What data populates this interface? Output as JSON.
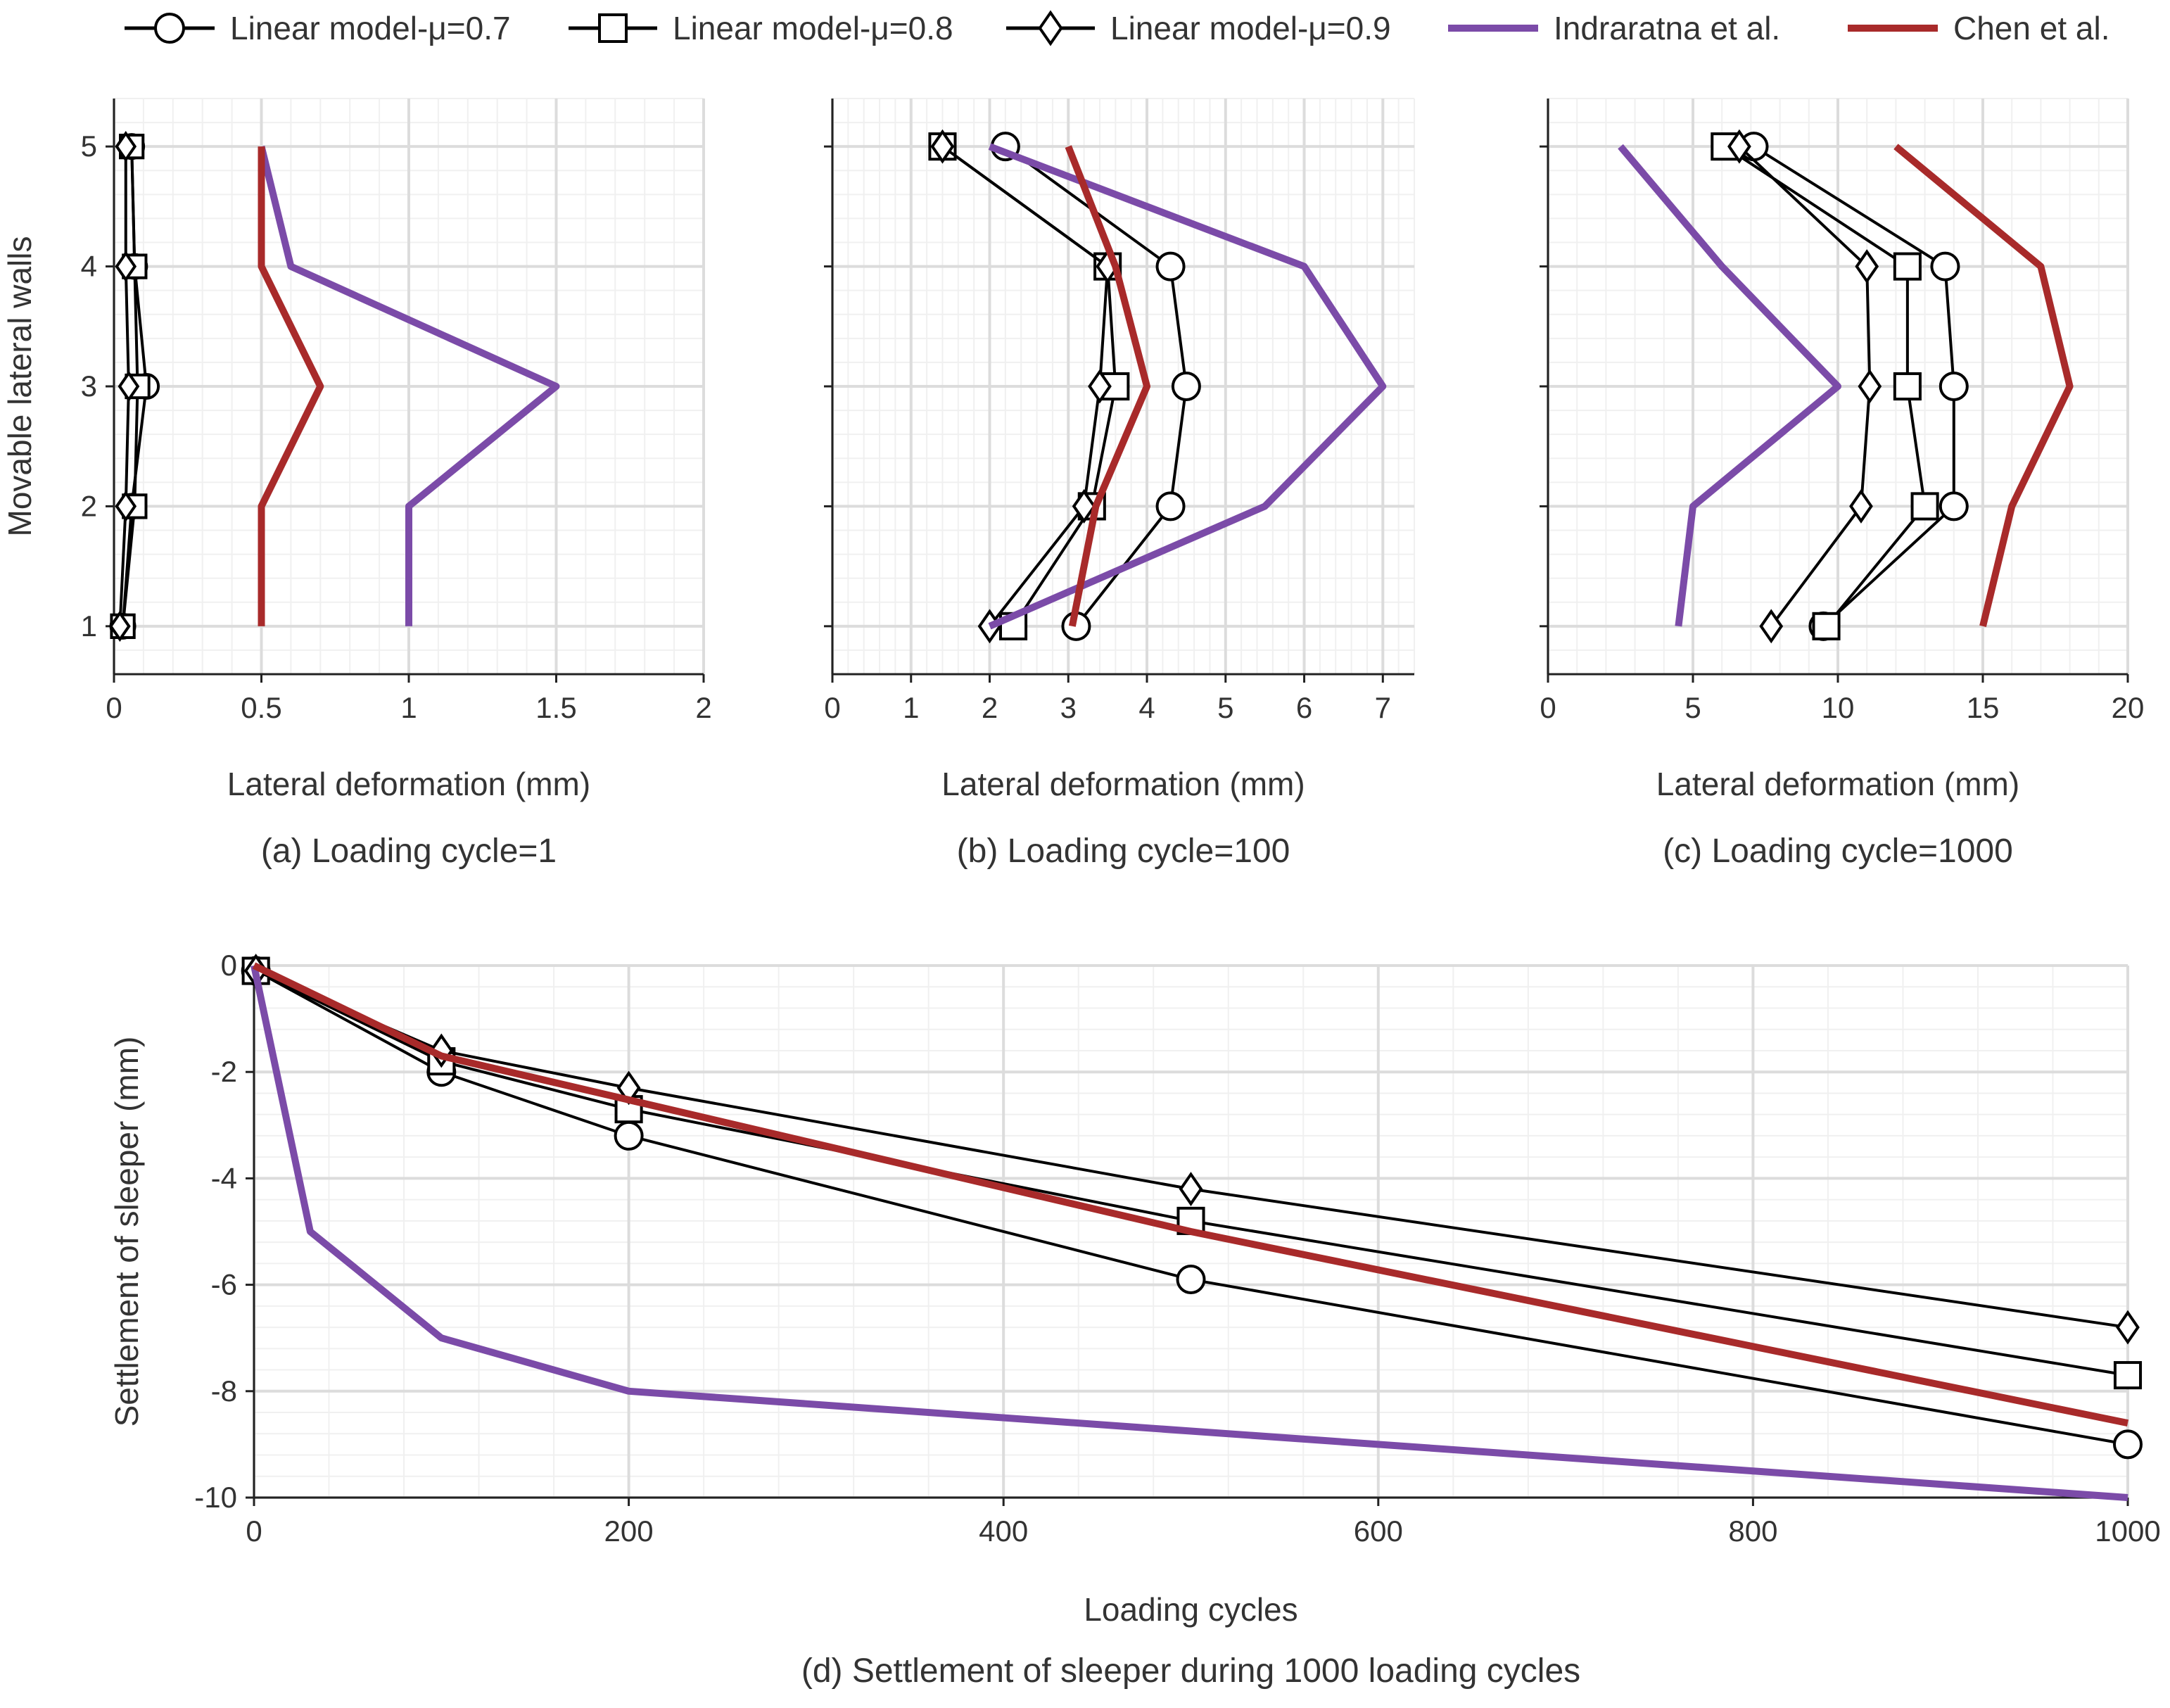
{
  "chart_data": [
    {
      "type": "line",
      "panel": "a",
      "caption": "(a) Loading cycle=1",
      "xlabel": "Lateral deformation (mm)",
      "ylabel": "Movable lateral walls",
      "xlim": [
        0,
        2
      ],
      "ylim": [
        0.6,
        5.4
      ],
      "xticks": [
        0,
        0.5,
        1,
        1.5,
        2
      ],
      "xtick_labels": [
        "0",
        "0.5",
        "1",
        "1.5",
        "2"
      ],
      "yticks": [
        1,
        2,
        3,
        4,
        5
      ],
      "ytick_labels": [
        "1",
        "2",
        "3",
        "4",
        "5"
      ],
      "grid": true,
      "series": [
        {
          "name": "Linear model-μ=0.7",
          "marker": "circle",
          "x": [
            0.03,
            0.06,
            0.11,
            0.07,
            0.06
          ],
          "y": [
            1,
            2,
            3,
            4,
            5
          ]
        },
        {
          "name": "Linear model-μ=0.8",
          "marker": "square",
          "x": [
            0.03,
            0.07,
            0.08,
            0.07,
            0.06
          ],
          "y": [
            1,
            2,
            3,
            4,
            5
          ]
        },
        {
          "name": "Linear model-μ=0.9",
          "marker": "diamond",
          "x": [
            0.02,
            0.04,
            0.05,
            0.04,
            0.04
          ],
          "y": [
            1,
            2,
            3,
            4,
            5
          ]
        },
        {
          "name": "Indraratna et al.",
          "marker": "none",
          "x": [
            1.0,
            1.0,
            1.5,
            0.6,
            0.5
          ],
          "y": [
            1,
            2,
            3,
            4,
            5
          ]
        },
        {
          "name": "Chen et al.",
          "marker": "none",
          "x": [
            0.5,
            0.5,
            0.7,
            0.5,
            0.5
          ],
          "y": [
            1,
            2,
            3,
            4,
            5
          ]
        }
      ]
    },
    {
      "type": "line",
      "panel": "b",
      "caption": "(b) Loading cycle=100",
      "xlabel": "Lateral deformation (mm)",
      "ylabel": "",
      "xlim": [
        0,
        7.4
      ],
      "ylim": [
        0.6,
        5.4
      ],
      "xticks": [
        0,
        1,
        2,
        3,
        4,
        5,
        6,
        7
      ],
      "xtick_labels": [
        "0",
        "1",
        "2",
        "3",
        "4",
        "5",
        "6",
        "7"
      ],
      "yticks": [
        1,
        2,
        3,
        4,
        5
      ],
      "ytick_labels": [],
      "grid": true,
      "series": [
        {
          "name": "Linear model-μ=0.7",
          "marker": "circle",
          "x": [
            3.1,
            4.3,
            4.5,
            4.3,
            2.2
          ],
          "y": [
            1,
            2,
            3,
            4,
            5
          ]
        },
        {
          "name": "Linear model-μ=0.8",
          "marker": "square",
          "x": [
            2.3,
            3.3,
            3.6,
            3.5,
            1.4
          ],
          "y": [
            1,
            2,
            3,
            4,
            5
          ]
        },
        {
          "name": "Linear model-μ=0.9",
          "marker": "diamond",
          "x": [
            2.0,
            3.2,
            3.4,
            3.5,
            1.4
          ],
          "y": [
            1,
            2,
            3,
            4,
            5
          ]
        },
        {
          "name": "Indraratna et al.",
          "marker": "none",
          "x": [
            2.0,
            5.5,
            7.0,
            6.0,
            2.0
          ],
          "y": [
            1,
            2,
            3,
            4,
            5
          ]
        },
        {
          "name": "Chen et al.",
          "marker": "none",
          "x": [
            3.05,
            3.35,
            4.0,
            3.6,
            3.0
          ],
          "y": [
            1,
            2,
            3,
            4,
            5
          ]
        }
      ]
    },
    {
      "type": "line",
      "panel": "c",
      "caption": "(c) Loading cycle=1000",
      "xlabel": "Lateral deformation (mm)",
      "ylabel": "",
      "xlim": [
        0,
        20
      ],
      "ylim": [
        0.6,
        5.4
      ],
      "xticks": [
        0,
        5,
        10,
        15,
        20
      ],
      "xtick_labels": [
        "0",
        "5",
        "10",
        "15",
        "20"
      ],
      "yticks": [
        1,
        2,
        3,
        4,
        5
      ],
      "ytick_labels": [],
      "grid": true,
      "series": [
        {
          "name": "Linear model-μ=0.7",
          "marker": "circle",
          "x": [
            9.5,
            14.0,
            14.0,
            13.7,
            7.1
          ],
          "y": [
            1,
            2,
            3,
            4,
            5
          ]
        },
        {
          "name": "Linear model-μ=0.8",
          "marker": "square",
          "x": [
            9.6,
            13.0,
            12.4,
            12.4,
            6.1
          ],
          "y": [
            1,
            2,
            3,
            4,
            5
          ]
        },
        {
          "name": "Linear model-μ=0.9",
          "marker": "diamond",
          "x": [
            7.7,
            10.8,
            11.1,
            11.0,
            6.6
          ],
          "y": [
            1,
            2,
            3,
            4,
            5
          ]
        },
        {
          "name": "Indraratna et al.",
          "marker": "none",
          "x": [
            4.5,
            5.0,
            10.0,
            6.0,
            2.5
          ],
          "y": [
            1,
            2,
            3,
            4,
            5
          ]
        },
        {
          "name": "Chen et al.",
          "marker": "none",
          "x": [
            15.0,
            16.0,
            18.0,
            17.0,
            12.0
          ],
          "y": [
            1,
            2,
            3,
            4,
            5
          ]
        }
      ]
    },
    {
      "type": "line",
      "panel": "d",
      "caption": "(d) Settlement of sleeper during 1000 loading cycles",
      "xlabel": "Loading cycles",
      "ylabel": "Settlement of sleeper (mm)",
      "xlim": [
        0,
        1000
      ],
      "ylim": [
        -10,
        0
      ],
      "xticks": [
        0,
        200,
        400,
        600,
        800,
        1000
      ],
      "xtick_labels": [
        "0",
        "200",
        "400",
        "600",
        "800",
        "1000"
      ],
      "yticks": [
        0,
        -2,
        -4,
        -6,
        -8,
        -10
      ],
      "ytick_labels": [
        "0",
        "-2",
        "-4",
        "-6",
        "-8",
        "-10"
      ],
      "grid": true,
      "series": [
        {
          "name": "Linear model-μ=0.7",
          "marker": "circle",
          "x": [
            1,
            100,
            200,
            500,
            1000
          ],
          "y": [
            -0.1,
            -2.0,
            -3.2,
            -5.9,
            -9.0
          ]
        },
        {
          "name": "Linear model-μ=0.8",
          "marker": "square",
          "x": [
            1,
            100,
            200,
            500,
            1000
          ],
          "y": [
            -0.1,
            -1.8,
            -2.7,
            -4.8,
            -7.7
          ]
        },
        {
          "name": "Linear model-μ=0.9",
          "marker": "diamond",
          "x": [
            1,
            100,
            200,
            500,
            1000
          ],
          "y": [
            -0.1,
            -1.6,
            -2.3,
            -4.2,
            -6.8
          ]
        },
        {
          "name": "Indraratna et al.",
          "marker": "none",
          "x": [
            0,
            30,
            100,
            200,
            1000
          ],
          "y": [
            0,
            -5.0,
            -7.0,
            -8.0,
            -10.0
          ]
        },
        {
          "name": "Chen et al.",
          "marker": "none",
          "x": [
            0,
            100,
            500,
            1000
          ],
          "y": [
            0,
            -1.7,
            -5.0,
            -8.6
          ]
        }
      ]
    }
  ],
  "legend": [
    {
      "label": "Linear model-μ=0.7",
      "marker": "circle",
      "color": "#000000"
    },
    {
      "label": "Linear model-μ=0.8",
      "marker": "square",
      "color": "#000000"
    },
    {
      "label": "Linear model-μ=0.9",
      "marker": "diamond",
      "color": "#000000"
    },
    {
      "label": "Indraratna et al.",
      "marker": "none",
      "color": "#7b4ba8"
    },
    {
      "label": "Chen et al.",
      "marker": "none",
      "color": "#a82a2a"
    }
  ],
  "colors": {
    "model": "#000000",
    "indraratna": "#7b4ba8",
    "chen": "#a82a2a",
    "grid_major": "#dcdcdc",
    "grid_minor": "#f0f0f0",
    "text": "#333333"
  }
}
